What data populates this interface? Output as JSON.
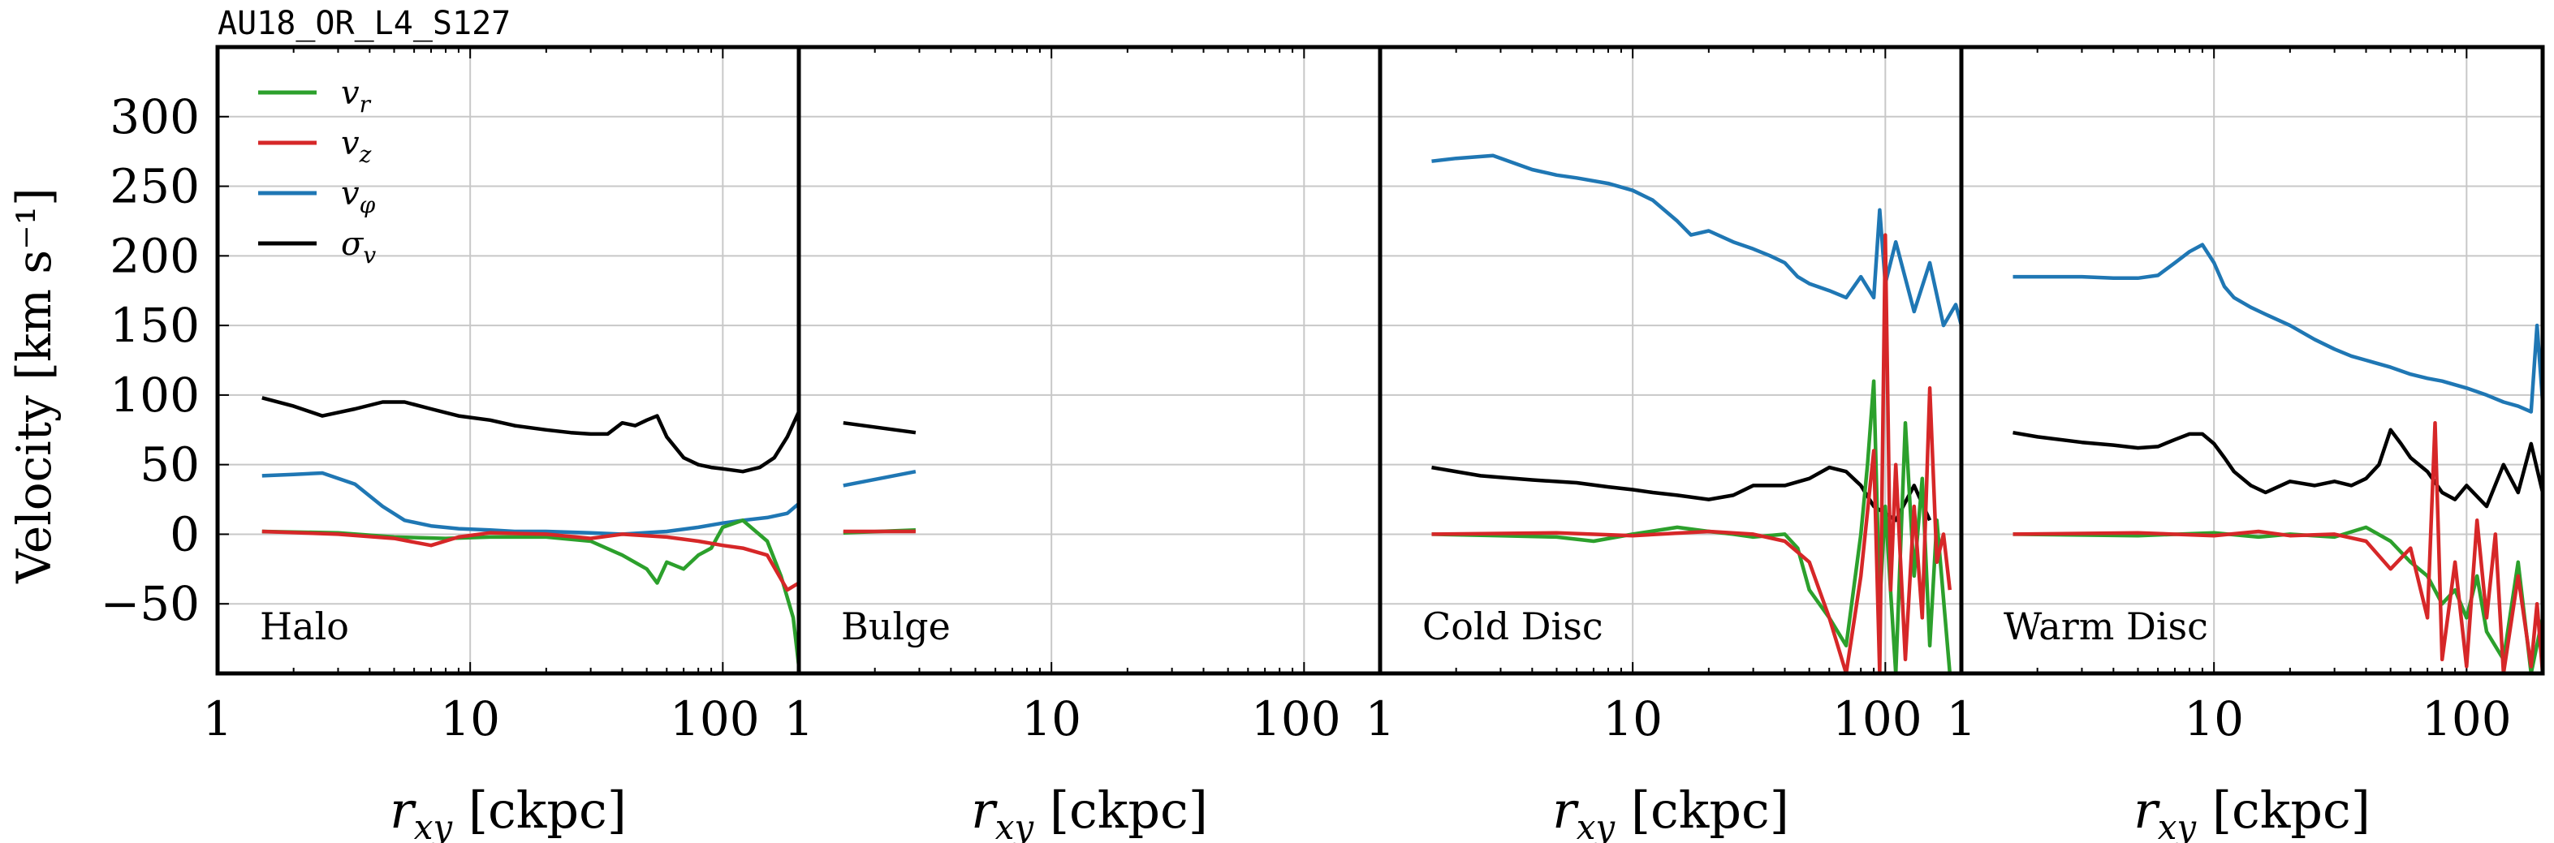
{
  "figure": {
    "title": "AU18_OR_L4_S127",
    "ylabel": "Velocity [km s⁻¹]",
    "xlabel": "r_xy [ckpc]"
  },
  "legend": [
    {
      "label": "v_r",
      "color": "#2ca02c"
    },
    {
      "label": "v_z",
      "color": "#d62728"
    },
    {
      "label": "v_φ",
      "color": "#1f77b4"
    },
    {
      "label": "σ_v",
      "color": "#000000"
    }
  ],
  "chart_data": [
    {
      "type": "line",
      "panel": "Halo",
      "xscale": "log",
      "xlim": [
        1,
        200
      ],
      "ylim": [
        -100,
        350
      ],
      "grid": true,
      "x_ticks": [
        "1",
        "10",
        "100"
      ],
      "y_ticks": [
        "300",
        "250",
        "200",
        "150",
        "100",
        "50",
        "0",
        "−50"
      ],
      "series": [
        {
          "name": "σ_v",
          "color": "#000000",
          "x": [
            1.5,
            2,
            2.6,
            3.5,
            4.5,
            5.5,
            7,
            9,
            12,
            15,
            20,
            25,
            30,
            35,
            40,
            45,
            50,
            55,
            60,
            70,
            80,
            90,
            100,
            120,
            140,
            160,
            180,
            200
          ],
          "y": [
            98,
            92,
            85,
            90,
            95,
            95,
            90,
            85,
            82,
            78,
            75,
            73,
            72,
            72,
            80,
            78,
            82,
            85,
            70,
            55,
            50,
            48,
            47,
            45,
            48,
            55,
            70,
            88
          ]
        },
        {
          "name": "v_φ",
          "color": "#1f77b4",
          "x": [
            1.5,
            2,
            2.6,
            3.5,
            4.5,
            5.5,
            7,
            9,
            12,
            15,
            20,
            30,
            40,
            60,
            80,
            100,
            120,
            150,
            180,
            200
          ],
          "y": [
            42,
            43,
            44,
            36,
            20,
            10,
            6,
            4,
            3,
            2,
            2,
            1,
            0,
            2,
            5,
            8,
            10,
            12,
            15,
            22
          ]
        },
        {
          "name": "v_r",
          "color": "#2ca02c",
          "x": [
            1.5,
            3,
            5,
            8,
            12,
            20,
            30,
            40,
            50,
            55,
            60,
            70,
            80,
            90,
            100,
            120,
            150,
            170,
            190,
            200
          ],
          "y": [
            2,
            1,
            -2,
            -3,
            -2,
            -2,
            -5,
            -15,
            -25,
            -35,
            -20,
            -25,
            -15,
            -10,
            5,
            10,
            -5,
            -30,
            -60,
            -95
          ]
        },
        {
          "name": "v_z",
          "color": "#d62728",
          "x": [
            1.5,
            3,
            5,
            7,
            9,
            12,
            20,
            30,
            40,
            60,
            80,
            100,
            120,
            150,
            180,
            200
          ],
          "y": [
            2,
            0,
            -3,
            -8,
            -2,
            1,
            0,
            -3,
            0,
            -2,
            -5,
            -8,
            -10,
            -15,
            -40,
            -35
          ]
        }
      ]
    },
    {
      "type": "line",
      "panel": "Bulge",
      "xscale": "log",
      "xlim": [
        1,
        200
      ],
      "ylim": [
        -100,
        350
      ],
      "grid": true,
      "x_ticks": [
        "1",
        "10",
        "100"
      ],
      "series": [
        {
          "name": "σ_v",
          "color": "#000000",
          "x": [
            1.5,
            2.9
          ],
          "y": [
            80,
            73
          ]
        },
        {
          "name": "v_φ",
          "color": "#1f77b4",
          "x": [
            1.5,
            2.9
          ],
          "y": [
            35,
            45
          ]
        },
        {
          "name": "v_r",
          "color": "#2ca02c",
          "x": [
            1.5,
            2.9
          ],
          "y": [
            1,
            3
          ]
        },
        {
          "name": "v_z",
          "color": "#d62728",
          "x": [
            1.5,
            2.9
          ],
          "y": [
            2,
            2
          ]
        }
      ]
    },
    {
      "type": "line",
      "panel": "Cold Disc",
      "xscale": "log",
      "xlim": [
        1,
        200
      ],
      "ylim": [
        -100,
        350
      ],
      "grid": true,
      "x_ticks": [
        "1",
        "10",
        "100"
      ],
      "series": [
        {
          "name": "v_φ",
          "color": "#1f77b4",
          "x": [
            1.6,
            2,
            2.8,
            4,
            5,
            6,
            8,
            10,
            12,
            15,
            17,
            20,
            25,
            30,
            35,
            40,
            45,
            50,
            60,
            70,
            80,
            90,
            95,
            100,
            110,
            130,
            150,
            170,
            190,
            200
          ],
          "y": [
            268,
            270,
            272,
            262,
            258,
            256,
            252,
            247,
            240,
            225,
            215,
            218,
            210,
            205,
            200,
            195,
            185,
            180,
            175,
            170,
            185,
            170,
            233,
            180,
            210,
            160,
            195,
            150,
            165,
            150
          ]
        },
        {
          "name": "σ_v",
          "color": "#000000",
          "x": [
            1.6,
            2.5,
            4,
            6,
            8,
            10,
            12,
            15,
            20,
            25,
            30,
            40,
            50,
            60,
            70,
            80,
            90,
            100,
            110,
            130,
            150
          ],
          "y": [
            48,
            42,
            39,
            37,
            34,
            32,
            30,
            28,
            25,
            28,
            35,
            35,
            40,
            48,
            45,
            35,
            20,
            15,
            10,
            35,
            10
          ]
        },
        {
          "name": "v_r",
          "color": "#2ca02c",
          "x": [
            1.6,
            3,
            5,
            7,
            10,
            15,
            20,
            25,
            30,
            40,
            45,
            50,
            60,
            70,
            80,
            85,
            90,
            95,
            100,
            110,
            120,
            130,
            140,
            150,
            160,
            180
          ],
          "y": [
            0,
            -1,
            -2,
            -5,
            0,
            5,
            2,
            0,
            -2,
            0,
            -10,
            -40,
            -60,
            -80,
            0,
            50,
            110,
            -50,
            20,
            -100,
            80,
            -30,
            40,
            -80,
            10,
            -100
          ]
        },
        {
          "name": "v_z",
          "color": "#d62728",
          "x": [
            1.6,
            5,
            10,
            20,
            30,
            40,
            50,
            60,
            70,
            80,
            90,
            95,
            100,
            105,
            110,
            120,
            130,
            140,
            150,
            160,
            170,
            180
          ],
          "y": [
            0,
            1,
            -1,
            2,
            0,
            -5,
            -20,
            -60,
            -100,
            -30,
            60,
            -100,
            215,
            -40,
            50,
            -90,
            20,
            -60,
            105,
            -20,
            0,
            -40
          ]
        }
      ]
    },
    {
      "type": "line",
      "panel": "Warm Disc",
      "xscale": "log",
      "xlim": [
        1,
        200
      ],
      "ylim": [
        -100,
        350
      ],
      "grid": true,
      "x_ticks": [
        "1",
        "10",
        "100"
      ],
      "series": [
        {
          "name": "v_φ",
          "color": "#1f77b4",
          "x": [
            1.6,
            2,
            3,
            4,
            5,
            6,
            7,
            8,
            9,
            10,
            11,
            12,
            14,
            16,
            20,
            25,
            30,
            35,
            40,
            50,
            60,
            70,
            80,
            100,
            120,
            140,
            160,
            180,
            190,
            200
          ],
          "y": [
            185,
            185,
            185,
            184,
            184,
            186,
            195,
            203,
            208,
            195,
            178,
            170,
            163,
            158,
            150,
            140,
            133,
            128,
            125,
            120,
            115,
            112,
            110,
            105,
            100,
            95,
            92,
            88,
            150,
            95
          ]
        },
        {
          "name": "σ_v",
          "color": "#000000",
          "x": [
            1.6,
            2,
            3,
            4,
            5,
            6,
            7,
            8,
            9,
            10,
            11,
            12,
            14,
            16,
            20,
            25,
            30,
            35,
            40,
            45,
            50,
            55,
            60,
            70,
            80,
            90,
            100,
            120,
            140,
            160,
            180,
            200
          ],
          "y": [
            73,
            70,
            66,
            64,
            62,
            63,
            68,
            72,
            72,
            65,
            55,
            45,
            35,
            30,
            38,
            35,
            38,
            35,
            40,
            50,
            75,
            65,
            55,
            45,
            30,
            25,
            35,
            20,
            50,
            30,
            65,
            30
          ]
        },
        {
          "name": "v_r",
          "color": "#2ca02c",
          "x": [
            1.6,
            5,
            10,
            15,
            20,
            30,
            40,
            50,
            60,
            70,
            80,
            90,
            100,
            110,
            120,
            140,
            160,
            180,
            200
          ],
          "y": [
            0,
            -1,
            1,
            -2,
            0,
            -2,
            5,
            -5,
            -20,
            -30,
            -50,
            -40,
            -60,
            -30,
            -70,
            -90,
            -20,
            -100,
            -60
          ]
        },
        {
          "name": "v_z",
          "color": "#d62728",
          "x": [
            1.6,
            5,
            10,
            15,
            20,
            30,
            40,
            50,
            60,
            70,
            75,
            80,
            90,
            100,
            110,
            120,
            130,
            140,
            160,
            180,
            190,
            200
          ],
          "y": [
            0,
            1,
            -1,
            2,
            -1,
            0,
            -5,
            -25,
            -10,
            -60,
            80,
            -90,
            -20,
            -95,
            10,
            -60,
            0,
            -100,
            -30,
            -95,
            -50,
            -100
          ]
        }
      ]
    }
  ]
}
